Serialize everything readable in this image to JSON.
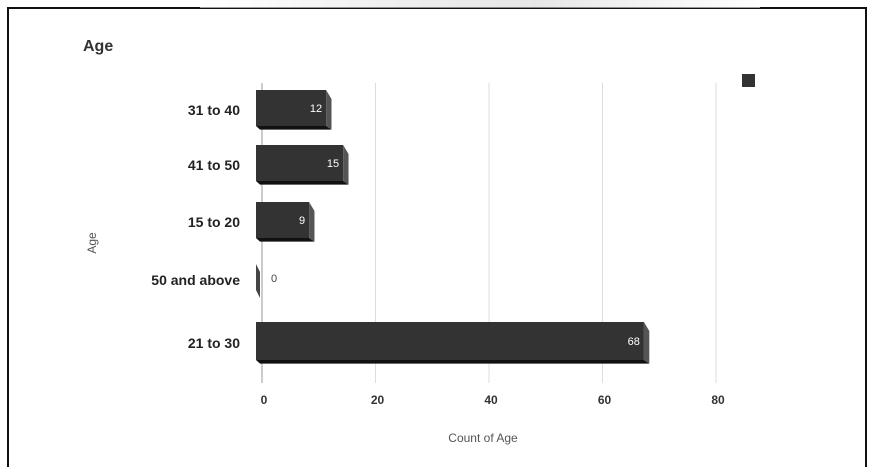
{
  "chart_data": {
    "type": "bar",
    "orientation": "horizontal",
    "title": "Age",
    "categories": [
      "31 to 40",
      "41 to 50",
      "15 to 20",
      "50 and above",
      "21 to 30"
    ],
    "values": [
      12,
      15,
      9,
      0,
      68
    ],
    "xlabel": "Count of Age",
    "ylabel": "Age",
    "xlim": [
      0,
      80
    ],
    "xticks": [
      0,
      20,
      40,
      60,
      80
    ],
    "grid": true,
    "legend": "top-right",
    "bar_color": "#333333",
    "style": "3d"
  }
}
